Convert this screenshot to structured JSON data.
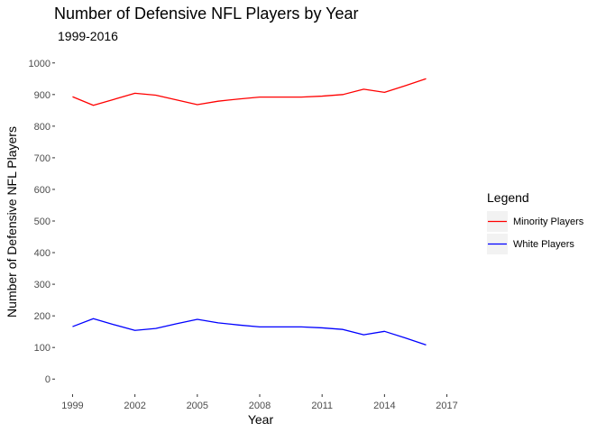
{
  "chart_data": {
    "type": "line",
    "title": "Number of Defensive NFL Players by Year",
    "subtitle": "1999-2016",
    "xlabel": "Year",
    "ylabel": "Number of Defensive NFL Players",
    "xlim": [
      1999,
      2017
    ],
    "ylim": [
      0,
      1000
    ],
    "xticks": [
      1999,
      2002,
      2005,
      2008,
      2011,
      2014,
      2017
    ],
    "yticks": [
      0,
      100,
      200,
      300,
      400,
      500,
      600,
      700,
      800,
      900,
      1000
    ],
    "grid": false,
    "legend": {
      "title": "Legend",
      "placement": "right"
    },
    "series": [
      {
        "name": "Minority Players",
        "color": "#ff0000",
        "x": [
          1999,
          2000,
          2001,
          2002,
          2003,
          2004,
          2005,
          2006,
          2007,
          2008,
          2009,
          2010,
          2011,
          2012,
          2013,
          2014,
          2015,
          2016
        ],
        "values": [
          893,
          866,
          885,
          904,
          898,
          883,
          868,
          879,
          886,
          892,
          892,
          892,
          895,
          900,
          917,
          907,
          928,
          950
        ]
      },
      {
        "name": "White Players",
        "color": "#0000ff",
        "x": [
          1999,
          2000,
          2001,
          2002,
          2003,
          2004,
          2005,
          2006,
          2007,
          2008,
          2009,
          2010,
          2011,
          2012,
          2013,
          2014,
          2015,
          2016
        ],
        "values": [
          166,
          191,
          172,
          154,
          160,
          175,
          189,
          178,
          171,
          165,
          165,
          165,
          162,
          157,
          140,
          151,
          130,
          108
        ]
      }
    ]
  }
}
